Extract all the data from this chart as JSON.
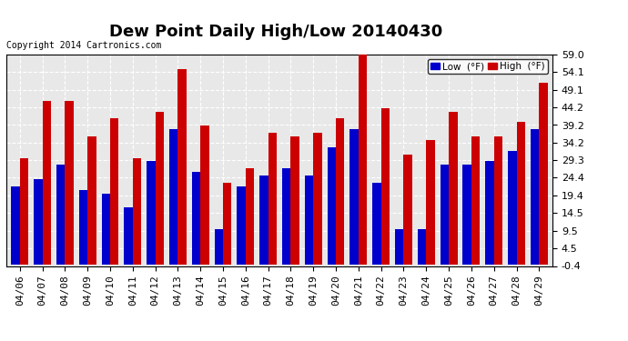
{
  "title": "Dew Point Daily High/Low 20140430",
  "copyright": "Copyright 2014 Cartronics.com",
  "dates": [
    "04/06",
    "04/07",
    "04/08",
    "04/09",
    "04/10",
    "04/11",
    "04/12",
    "04/13",
    "04/14",
    "04/15",
    "04/16",
    "04/17",
    "04/18",
    "04/19",
    "04/20",
    "04/21",
    "04/22",
    "04/23",
    "04/24",
    "04/25",
    "04/26",
    "04/27",
    "04/28",
    "04/29"
  ],
  "low": [
    22,
    24,
    28,
    21,
    20,
    16,
    29,
    38,
    26,
    10,
    22,
    25,
    27,
    25,
    33,
    38,
    23,
    10,
    10,
    28,
    28,
    29,
    32,
    38
  ],
  "high": [
    30,
    46,
    46,
    36,
    41,
    30,
    43,
    55,
    39,
    23,
    27,
    37,
    36,
    37,
    41,
    59,
    44,
    31,
    35,
    43,
    36,
    36,
    40,
    51
  ],
  "ylim": [
    -0.4,
    59.0
  ],
  "yticks": [
    -0.4,
    4.5,
    9.5,
    14.5,
    19.4,
    24.4,
    29.3,
    34.2,
    39.2,
    44.2,
    49.1,
    54.1,
    59.0
  ],
  "ytick_labels": [
    "-0.4",
    "4.5",
    "9.5",
    "14.5",
    "19.4",
    "24.4",
    "29.3",
    "34.2",
    "39.2",
    "44.2",
    "49.1",
    "54.1",
    "59.0"
  ],
  "low_color": "#0000cc",
  "high_color": "#cc0000",
  "bg_color": "#ffffff",
  "plot_bg_color": "#e8e8e8",
  "grid_color": "#ffffff",
  "title_fontsize": 13,
  "tick_fontsize": 8,
  "legend_low_label": "Low  (°F)",
  "legend_high_label": "High  (°F)"
}
